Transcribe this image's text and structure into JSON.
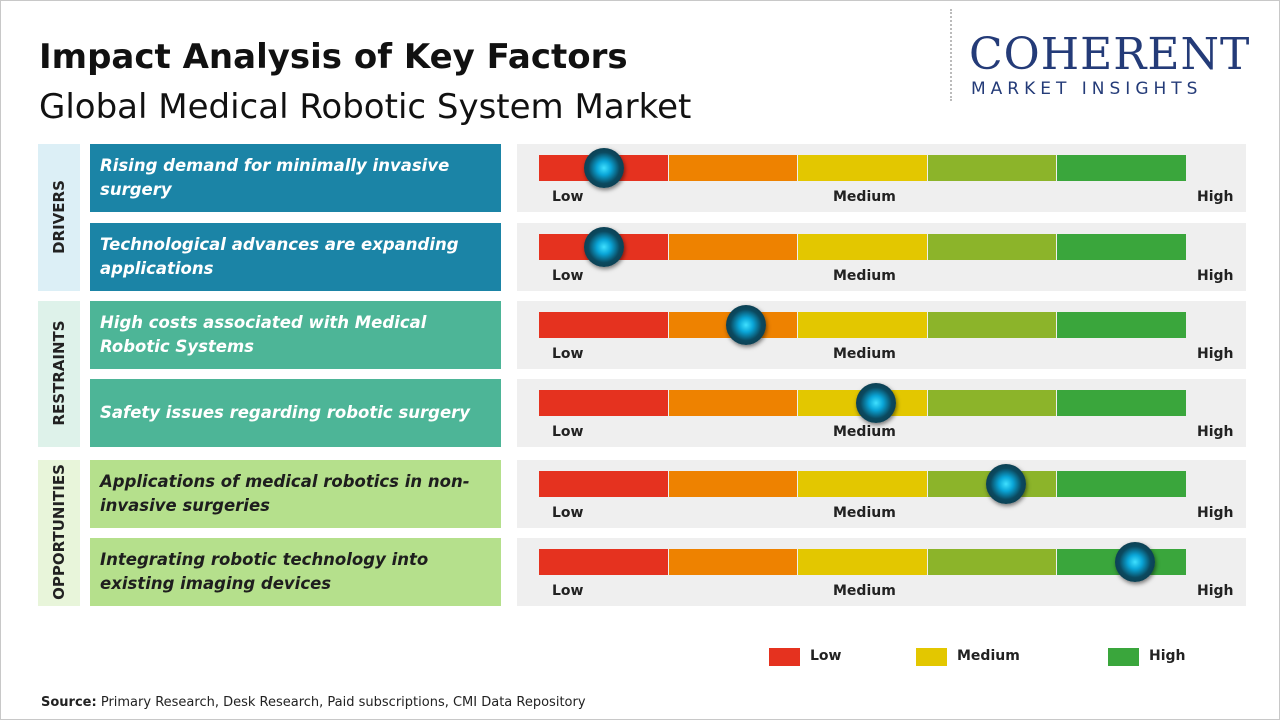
{
  "header": {
    "title": "Impact Analysis of Key Factors",
    "subtitle": "Global Medical Robotic System Market"
  },
  "logo": {
    "name": "COHERENT",
    "tagline": "MARKET INSIGHTS"
  },
  "scale": {
    "range": [
      0,
      5
    ],
    "labels": [
      "Low",
      "Medium",
      "High"
    ],
    "colors": [
      "#e5321f",
      "#ee8200",
      "#e3c700",
      "#8cb42a",
      "#3aa63c"
    ]
  },
  "groups": [
    {
      "label": "DRIVERS",
      "color": "#1b84a6",
      "background": "#dcEFF6",
      "text_color": "#ffffff",
      "items": [
        {
          "text": "Rising demand for minimally invasive surgery",
          "impact": 0.5
        },
        {
          "text": "Technological advances are expanding applications",
          "impact": 0.5
        }
      ]
    },
    {
      "label": "RESTRAINTS",
      "color": "#4db597",
      "background": "#def2ea",
      "text_color": "#ffffff",
      "items": [
        {
          "text": "High costs associated with Medical Robotic Systems",
          "impact": 1.6
        },
        {
          "text": "Safety issues regarding robotic surgery",
          "impact": 2.6
        }
      ]
    },
    {
      "label": "OPPORTUNITIES",
      "color": "#b5e08c",
      "background": "#e8f5da",
      "text_color": "#1e1e1e",
      "items": [
        {
          "text": "Applications of medical robotics in non-invasive surgeries",
          "impact": 3.6
        },
        {
          "text": "Integrating robotic technology into existing imaging devices",
          "impact": 4.6
        }
      ]
    }
  ],
  "legend": [
    {
      "label": "Low",
      "color": "#e5321f"
    },
    {
      "label": "Medium",
      "color": "#e3c700"
    },
    {
      "label": "High",
      "color": "#3aa63c"
    }
  ],
  "source": {
    "label": "Source:",
    "text": "Primary Research, Desk Research, Paid subscriptions, CMI Data Repository"
  }
}
